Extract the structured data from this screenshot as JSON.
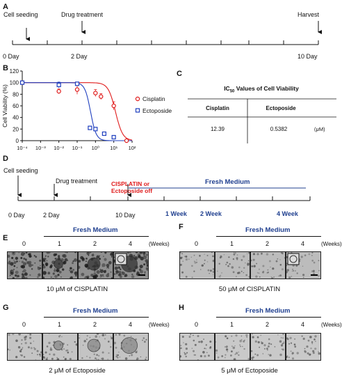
{
  "panels": {
    "A": "A",
    "B": "B",
    "C": "C",
    "D": "D",
    "E": "E",
    "F": "F",
    "G": "G",
    "H": "H"
  },
  "timeline_a": {
    "events": {
      "seeding": "Cell seeding",
      "treatment": "Drug treatment",
      "harvest": "Harvest"
    },
    "ticks": {
      "day0": "0 Day",
      "day2": "2 Day",
      "day10": "10 Day"
    }
  },
  "chart_data": {
    "type": "scatter",
    "ylabel": "Cell Viability (%)",
    "xscale": "log",
    "xlim": [
      0.0001,
      100
    ],
    "ylim": [
      0,
      120
    ],
    "y_ticks": [
      0,
      20,
      40,
      60,
      80,
      100,
      120
    ],
    "x_tick_labels": [
      "10⁻⁴",
      "10⁻³",
      "10⁻²",
      "10⁻¹",
      "10⁰",
      "10¹",
      "10²"
    ],
    "series": [
      {
        "name": "Cisplatin",
        "color": "#e01b1b",
        "marker": "circle",
        "x": [
          0.0001,
          0.01,
          0.1,
          1,
          2,
          10,
          50
        ],
        "y": [
          100,
          85,
          88,
          82,
          76,
          60,
          0
        ],
        "err": [
          0,
          4,
          8,
          6,
          5,
          7,
          0
        ]
      },
      {
        "name": "Ectoposide",
        "color": "#1f3fbf",
        "marker": "square",
        "x": [
          0.0001,
          0.01,
          0.1,
          0.5,
          1,
          3,
          10
        ],
        "y": [
          100,
          96,
          98,
          22,
          20,
          12,
          6
        ],
        "err": [
          0,
          5,
          3,
          3,
          3,
          2,
          2
        ]
      }
    ]
  },
  "ic50_table": {
    "title": "IC",
    "title_sub": "50",
    "title_rest": " Values of Cell Viability",
    "headers": [
      "Cisplatin",
      "Ectoposide"
    ],
    "values": [
      "12.39",
      "0.5382"
    ],
    "unit": "(μM)"
  },
  "timeline_d": {
    "events": {
      "seeding": "Cell seeding",
      "treatment": "Drug treatment",
      "drug_off_line1": "CISPLATIN or",
      "drug_off_line2": "Ectoposide off",
      "fresh": "Fresh Medium"
    },
    "ticks": {
      "day0": "0 Day",
      "day2": "2 Day",
      "day10": "10 Day",
      "w1": "1 Week",
      "w2": "2 Week",
      "w4": "4 Week"
    }
  },
  "micro": {
    "fresh_medium": "Fresh Medium",
    "weeks_label": "(Weeks)",
    "week_labels": [
      "0",
      "1",
      "2",
      "4"
    ],
    "E": {
      "caption": "10 μM of CISPLATIN"
    },
    "F": {
      "caption": "50 μM of CISPLATIN"
    },
    "G": {
      "caption": "2 μM of Ectoposide"
    },
    "H": {
      "caption": "5 μM of Ectoposide"
    }
  }
}
